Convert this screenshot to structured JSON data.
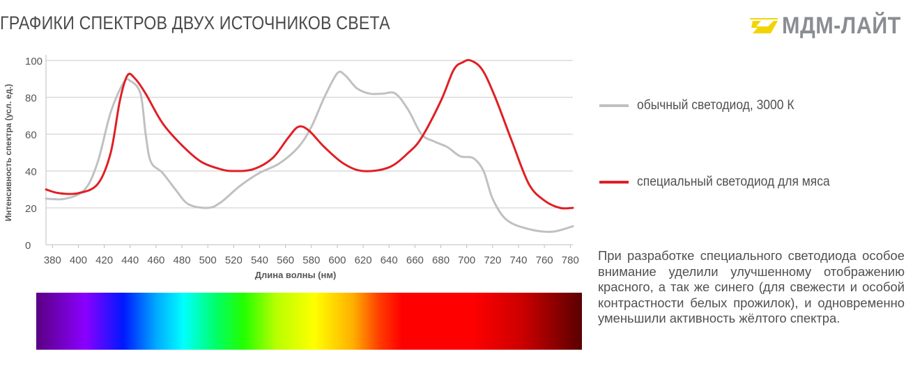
{
  "title": "ГРАФИКИ СПЕКТРОВ ДВУХ ИСТОЧНИКОВ СВЕТА",
  "logo": {
    "text": "МДМ-ЛАЙТ",
    "tm": "®",
    "mark_color": "#f2d500"
  },
  "legend": [
    {
      "label": "обычный светодиод, 3000 К",
      "color": "#c0c0c0"
    },
    {
      "label": "специальный светодиод для мяса",
      "color": "#e01f25"
    }
  ],
  "note": "При разработке специального светодиода особое внимание уделили улучшенному отображению красного, а так же синего (для свежести и особой контрастности белых прожилок), и одновременно уменьшили активность жёлтого спектра.",
  "chart_data": {
    "type": "line",
    "xlabel": "Длина волны (нм)",
    "ylabel": "Интенсивность спектра (усл. ед.)",
    "xlim": [
      375,
      782
    ],
    "ylim": [
      0,
      100
    ],
    "xticks": [
      380,
      400,
      420,
      440,
      460,
      480,
      500,
      520,
      540,
      560,
      580,
      600,
      620,
      640,
      660,
      680,
      700,
      720,
      740,
      760,
      780
    ],
    "yticks": [
      0,
      20,
      40,
      60,
      80,
      100
    ],
    "grid": "horizontal",
    "legend_position": "right",
    "series": [
      {
        "name": "обычный светодиод, 3000 К",
        "color": "#c0c0c0",
        "x": [
          375,
          390,
          405,
          415,
          425,
          435,
          440,
          448,
          452,
          456,
          465,
          475,
          485,
          500,
          510,
          525,
          540,
          555,
          570,
          580,
          590,
          600,
          606,
          615,
          625,
          635,
          645,
          655,
          665,
          675,
          685,
          695,
          705,
          713,
          720,
          730,
          745,
          765,
          782
        ],
        "y": [
          25,
          25,
          30,
          45,
          72,
          88,
          89,
          82,
          60,
          45,
          39,
          30,
          22,
          20,
          23,
          32,
          39,
          44,
          53,
          64,
          80,
          93,
          92,
          85,
          82,
          82,
          82,
          73,
          60,
          56,
          53,
          48,
          47,
          40,
          25,
          14,
          9,
          7,
          10
        ]
      },
      {
        "name": "специальный светодиод для мяса",
        "color": "#e01f25",
        "x": [
          375,
          385,
          400,
          415,
          425,
          432,
          438,
          444,
          452,
          465,
          480,
          495,
          510,
          520,
          535,
          550,
          562,
          570,
          578,
          590,
          605,
          620,
          640,
          655,
          665,
          680,
          690,
          697,
          703,
          712,
          722,
          735,
          748,
          760,
          772,
          782
        ],
        "y": [
          30,
          28,
          28,
          33,
          50,
          78,
          92,
          90,
          82,
          66,
          54,
          45,
          41,
          40,
          41,
          47,
          58,
          64,
          62,
          53,
          44,
          40,
          42,
          50,
          58,
          78,
          95,
          99,
          100,
          95,
          80,
          56,
          33,
          24,
          20,
          20
        ]
      }
    ]
  }
}
